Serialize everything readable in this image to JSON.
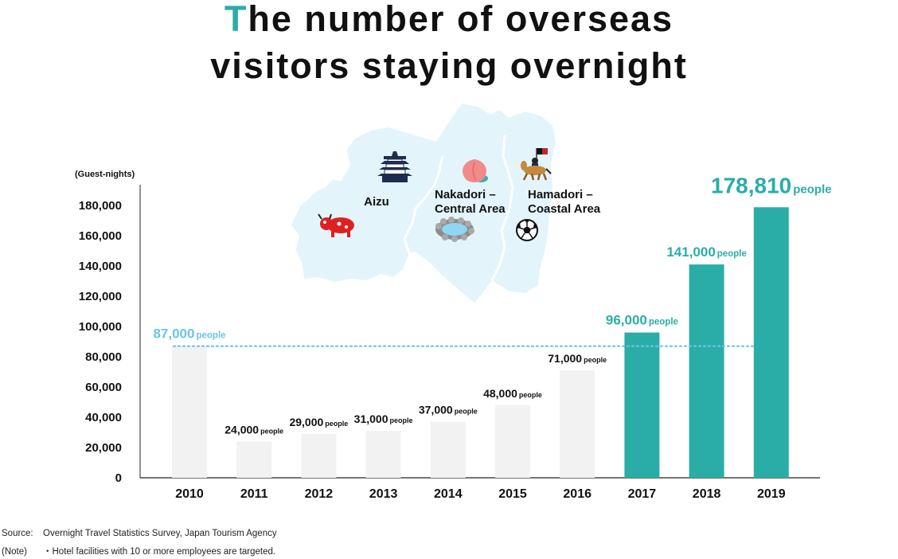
{
  "title": {
    "first_letter": "T",
    "line1_rest": "he number of overseas",
    "line2": "visitors staying overnight"
  },
  "colors": {
    "accent": "#2aada7",
    "bar_grey": "#f2f2f2",
    "highlight_label": "#6cc3e8",
    "map_fill": "#e3f4fb"
  },
  "map": {
    "regions": [
      {
        "name": "Aizu"
      },
      {
        "name": "Nakadori –\nCentral Area"
      },
      {
        "name": "Hamadori –\nCoastal Area"
      }
    ],
    "icons": [
      "castle-icon",
      "akabeko-icon",
      "peach-icon",
      "hot-spring-icon",
      "samurai-horse-icon",
      "soccer-ball-icon"
    ]
  },
  "chart_data": {
    "type": "bar",
    "ylabel": "(Guest-nights)",
    "yticks": [
      "0",
      "20,000",
      "40,000",
      "60,000",
      "80,000",
      "100,000",
      "120,000",
      "140,000",
      "160,000",
      "180,000"
    ],
    "ylim": [
      0,
      180000
    ],
    "categories": [
      "2010",
      "2011",
      "2012",
      "2013",
      "2014",
      "2015",
      "2016",
      "2017",
      "2018",
      "2019"
    ],
    "values": [
      87000,
      24000,
      29000,
      31000,
      37000,
      48000,
      71000,
      96000,
      141000,
      178810
    ],
    "labels": [
      "87,000",
      "24,000",
      "29,000",
      "31,000",
      "37,000",
      "48,000",
      "71,000",
      "96,000",
      "141,000",
      "178,810"
    ],
    "unit": "people",
    "highlighted_years": [
      "2017",
      "2018",
      "2019"
    ],
    "reference_line": {
      "value": 87000
    }
  },
  "footer": {
    "source_key": "Source:",
    "source_text": "Overnight Travel Statistics Survey, Japan Tourism Agency",
    "note_key": "(Note)",
    "note_text": "・Hotel facilities with 10 or more employees are targeted."
  }
}
